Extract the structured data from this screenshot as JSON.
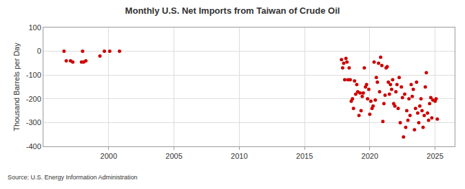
{
  "chart_data": {
    "type": "scatter",
    "title": "Monthly U.S. Net Imports from Taiwan of Crude Oil",
    "y_label": "Thousand Barrels per Day",
    "source": "Source: U.S. Energy Information Administration",
    "x": [
      1996.58,
      1996.75,
      1997.08,
      1997.25,
      1997.92,
      1998.0,
      1998.08,
      1998.25,
      1999.33,
      1999.67,
      2000.08,
      2000.83,
      2017.83,
      2017.92,
      2018.0,
      2018.08,
      2018.17,
      2018.25,
      2018.33,
      2018.42,
      2018.5,
      2018.58,
      2018.67,
      2018.75,
      2018.83,
      2018.92,
      2019.0,
      2019.08,
      2019.17,
      2019.25,
      2019.33,
      2019.42,
      2019.5,
      2019.58,
      2019.67,
      2019.75,
      2019.83,
      2019.92,
      2020.0,
      2020.08,
      2020.17,
      2020.25,
      2020.33,
      2020.42,
      2020.5,
      2020.58,
      2020.67,
      2020.75,
      2020.83,
      2020.92,
      2021.0,
      2021.08,
      2021.17,
      2021.25,
      2021.33,
      2021.42,
      2021.5,
      2021.58,
      2021.67,
      2021.75,
      2021.83,
      2021.92,
      2022.0,
      2022.08,
      2022.17,
      2022.25,
      2022.33,
      2022.42,
      2022.5,
      2022.58,
      2022.67,
      2022.75,
      2022.83,
      2022.92,
      2023.0,
      2023.08,
      2023.17,
      2023.25,
      2023.33,
      2023.42,
      2023.5,
      2023.58,
      2023.67,
      2023.75,
      2023.83,
      2023.92,
      2024.0,
      2024.08,
      2024.17,
      2024.25,
      2024.33,
      2024.42,
      2024.5,
      2024.58,
      2024.67,
      2024.75,
      2024.83,
      2025.0,
      2025.08,
      2025.17
    ],
    "values": [
      0,
      -40,
      -40,
      -45,
      -45,
      0,
      -45,
      -40,
      -20,
      0,
      0,
      0,
      -35,
      -70,
      -50,
      -120,
      -30,
      -45,
      -120,
      -70,
      -120,
      -210,
      -200,
      -240,
      -125,
      -180,
      -140,
      -170,
      -270,
      -175,
      -250,
      -190,
      -175,
      -70,
      -150,
      -140,
      -200,
      -160,
      -265,
      -210,
      -240,
      -230,
      -45,
      -205,
      -110,
      -130,
      -50,
      -170,
      -25,
      -60,
      -295,
      -220,
      -185,
      -70,
      -65,
      -130,
      -180,
      -140,
      -160,
      -120,
      -220,
      -230,
      -170,
      -140,
      -240,
      -110,
      -300,
      -150,
      -195,
      -360,
      -180,
      -320,
      -250,
      -290,
      -200,
      -270,
      -140,
      -190,
      -160,
      -330,
      -240,
      -130,
      -260,
      -300,
      -230,
      -200,
      -250,
      -320,
      -270,
      -150,
      -90,
      -260,
      -290,
      -220,
      -195,
      -280,
      -205,
      -210,
      -200,
      -285
    ],
    "color": "#cc0000",
    "marker": "circle",
    "xlim": [
      1995,
      2026.5
    ],
    "xticks": [
      2000,
      2005,
      2010,
      2015,
      2020,
      2025
    ],
    "ylim": [
      -400,
      100
    ],
    "yticks": [
      -400,
      -300,
      -200,
      -100,
      0,
      100
    ],
    "grid": true
  }
}
